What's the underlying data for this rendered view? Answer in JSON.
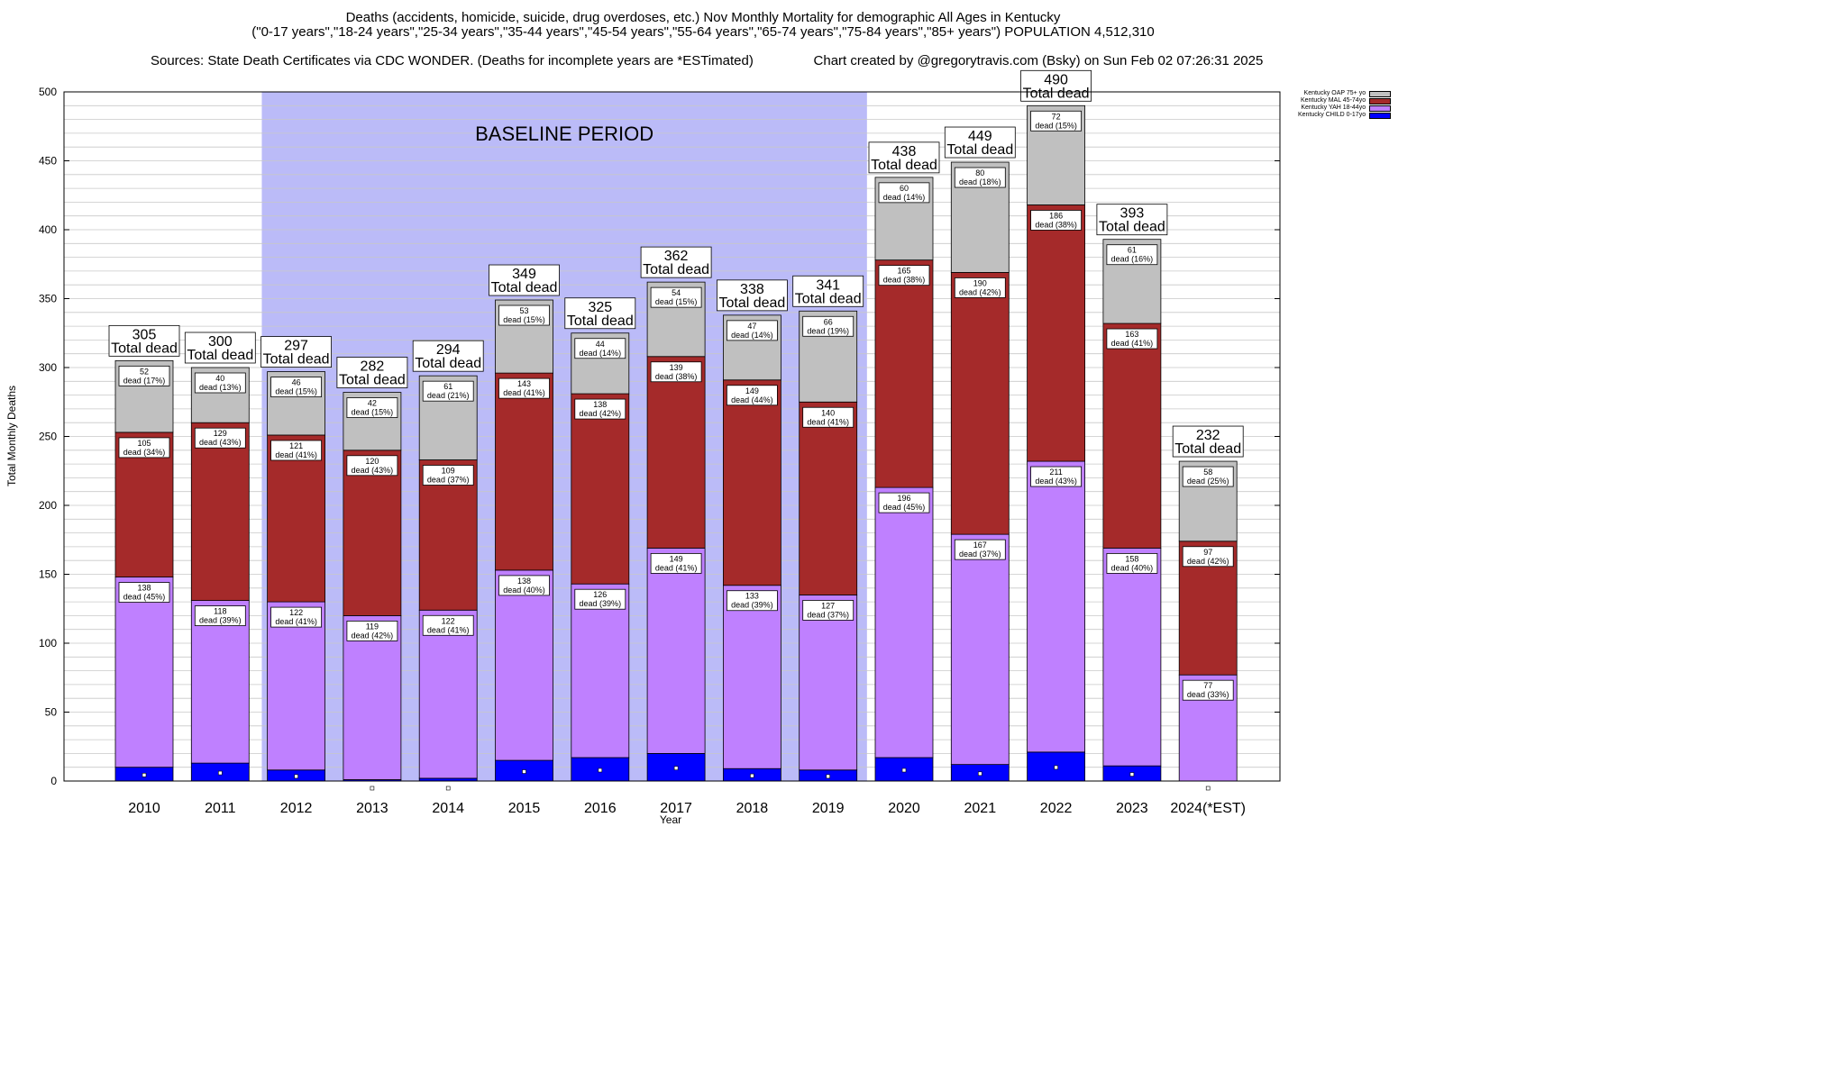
{
  "header": {
    "line1": "Deaths (accidents, homicide, suicide, drug overdoses, etc.) Nov Monthly Mortality for demographic All Ages in Kentucky",
    "line2": "(\"0-17 years\",\"18-24 years\",\"25-34 years\",\"35-44 years\",\"45-54 years\",\"55-64 years\",\"65-74 years\",\"75-84 years\",\"85+ years\") POPULATION 4,512,310",
    "line3_left": "Sources: State Death Certificates via CDC WONDER. (Deaths for incomplete years are *ESTimated)",
    "line3_right": "Chart created by @gregorytravis.com (Bsky) on Sun Feb 02 07:26:31 2025"
  },
  "chart_data": {
    "type": "bar",
    "stacked": true,
    "title": "Deaths (accidents, homicide, suicide, drug overdoses, etc.) Nov Monthly Mortality for demographic All Ages in Kentucky",
    "xlabel": "Year",
    "ylabel": "Total Monthly Deaths",
    "ylim": [
      0,
      500
    ],
    "yticks": [
      0,
      50,
      100,
      150,
      200,
      250,
      300,
      350,
      400,
      450,
      500
    ],
    "minor_grid_step": 10,
    "grid": true,
    "legend_position": "top-right",
    "categories": [
      "2010",
      "2011",
      "2012",
      "2013",
      "2014",
      "2015",
      "2016",
      "2017",
      "2018",
      "2019",
      "2020",
      "2021",
      "2022",
      "2023",
      "2024(*EST)"
    ],
    "series": [
      {
        "name": "Kentucky CHILD 0-17yo",
        "color": "#0000ff",
        "values": [
          10,
          13,
          8,
          1,
          2,
          15,
          17,
          20,
          9,
          8,
          17,
          12,
          21,
          11,
          0
        ]
      },
      {
        "name": "Kentucky YAH 18-44yo",
        "color": "#bf80ff",
        "values": [
          138,
          118,
          122,
          119,
          122,
          138,
          126,
          149,
          133,
          127,
          196,
          167,
          211,
          158,
          77
        ],
        "pct": [
          45,
          39,
          41,
          42,
          41,
          40,
          39,
          41,
          39,
          37,
          45,
          37,
          43,
          40,
          33
        ]
      },
      {
        "name": "Kentucky MAL 45-74yo",
        "color": "#a52a2a",
        "values": [
          105,
          129,
          121,
          120,
          109,
          143,
          138,
          139,
          149,
          140,
          165,
          190,
          186,
          163,
          97
        ],
        "pct": [
          34,
          43,
          41,
          43,
          37,
          41,
          42,
          38,
          44,
          41,
          38,
          42,
          38,
          41,
          42
        ]
      },
      {
        "name": "Kentucky OAP 75+ yo",
        "color": "#c0c0c0",
        "values": [
          52,
          40,
          46,
          42,
          61,
          53,
          44,
          54,
          47,
          66,
          60,
          80,
          72,
          61,
          58
        ],
        "pct": [
          17,
          13,
          15,
          15,
          21,
          15,
          14,
          15,
          14,
          19,
          14,
          18,
          15,
          16,
          25
        ]
      }
    ],
    "totals": [
      305,
      300,
      297,
      282,
      294,
      349,
      325,
      362,
      338,
      341,
      438,
      449,
      490,
      393,
      232
    ],
    "total_label": "Total dead",
    "segment_label_suffix": "dead",
    "baseline": {
      "label": "BASELINE PERIOD",
      "from": "2012",
      "to": "2019",
      "color": "#bbbbf8"
    }
  }
}
